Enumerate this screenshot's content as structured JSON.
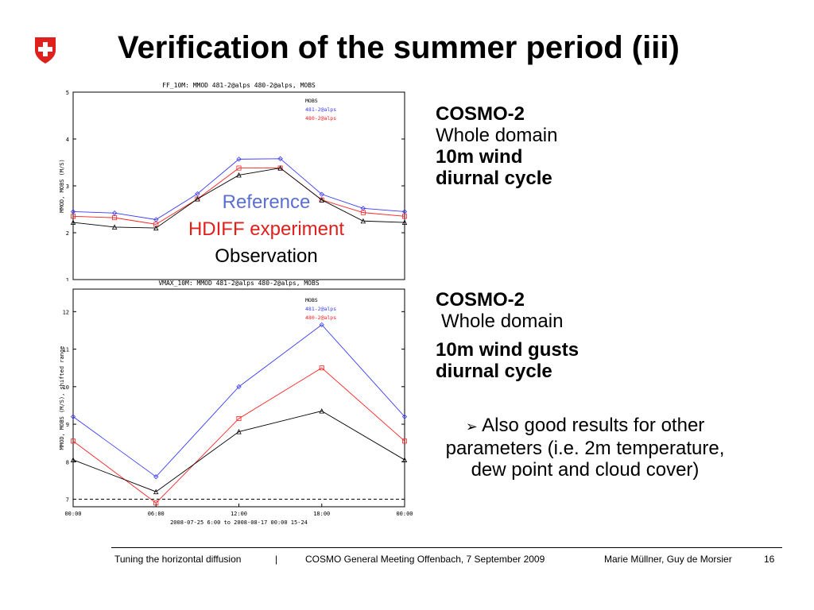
{
  "slide": {
    "title": "Verification of the summer period (iii)",
    "logo_colors": {
      "shield": "#e0201c",
      "cross": "#ffffff"
    }
  },
  "overlay": {
    "reference": "Reference",
    "hdiff": "HDIFF experiment",
    "observation": "Observation",
    "colors": {
      "reference": "#5b6fd1",
      "hdiff": "#e0201c",
      "observation": "#000000"
    }
  },
  "block1": {
    "model": "COSMO-2",
    "domain": "Whole domain",
    "variable": "10m wind",
    "cycle": "diurnal cycle"
  },
  "block2": {
    "model": "COSMO-2",
    "domain": "Whole domain",
    "variable": "10m wind gusts",
    "cycle": "diurnal cycle"
  },
  "bullet": {
    "marker": "➢",
    "text": "Also good results for other parameters (i.e. 2m temperature, dew point and cloud cover)"
  },
  "footer": {
    "left": "Tuning the horizontal diffusion",
    "sep": "|",
    "center": "COSMO General Meeting Offenbach, 7 September 2009",
    "right": "Marie Müllner, Guy de Morsier",
    "page": "16"
  },
  "chart_data": [
    {
      "type": "line",
      "title": "FF_10M:  MMOD 481-2@alps  480-2@alps, MOBS",
      "ylabel": "MMOD, MOBS (M/S)",
      "ylim": [
        1,
        5
      ],
      "yticks": [
        "1",
        "2",
        "3",
        "4",
        "5"
      ],
      "x": [
        0,
        3,
        6,
        9,
        12,
        15,
        18,
        21,
        24
      ],
      "legend": {
        "position": "top-right",
        "entries": [
          "MOBS",
          "481-2@alps",
          "480-2@alps"
        ]
      },
      "series": [
        {
          "name": "481-2@alps",
          "color": "#3a3aff",
          "marker": "diamond",
          "values": [
            2.45,
            2.42,
            2.28,
            2.83,
            3.57,
            3.58,
            2.82,
            2.52,
            2.45
          ]
        },
        {
          "name": "480-2@alps",
          "color": "#ff2020",
          "marker": "square",
          "values": [
            2.35,
            2.32,
            2.18,
            2.72,
            3.38,
            3.38,
            2.7,
            2.43,
            2.35
          ]
        },
        {
          "name": "MOBS",
          "color": "#000000",
          "marker": "triangle",
          "values": [
            2.22,
            2.12,
            2.1,
            2.72,
            3.23,
            3.38,
            2.7,
            2.25,
            2.22
          ]
        }
      ]
    },
    {
      "type": "line",
      "title": "VMAX_10M:  MMOD 481-2@alps  480-2@alps, MOBS",
      "ylabel": "MMOD, MOBS (M/S), shifted range",
      "xlabel": "2008-07-25  6:00 to 2008-08-17  00:00  15-24",
      "ylim": [
        6.8,
        12.6
      ],
      "yticks": [
        "7",
        "8",
        "9",
        "10",
        "11",
        "12"
      ],
      "xticks": [
        "00:00",
        "06:00",
        "12:00",
        "18:00",
        "00:00"
      ],
      "x": [
        0,
        6,
        12,
        18,
        24
      ],
      "reference_line": 7.0,
      "legend": {
        "position": "top-right",
        "entries": [
          "MOBS",
          "481-2@alps",
          "480-2@alps"
        ]
      },
      "series": [
        {
          "name": "481-2@alps",
          "color": "#3a3aff",
          "marker": "diamond",
          "values": [
            9.2,
            7.6,
            10.0,
            11.65,
            9.2
          ]
        },
        {
          "name": "480-2@alps",
          "color": "#ff2020",
          "marker": "square",
          "values": [
            8.55,
            6.9,
            9.15,
            10.5,
            8.55
          ]
        },
        {
          "name": "MOBS",
          "color": "#000000",
          "marker": "triangle",
          "values": [
            8.05,
            7.2,
            8.8,
            9.35,
            8.05
          ]
        }
      ]
    }
  ]
}
